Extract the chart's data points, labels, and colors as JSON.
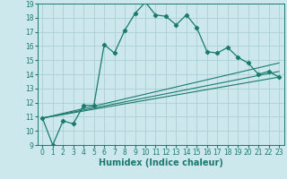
{
  "xlabel": "Humidex (Indice chaleur)",
  "bg_color": "#cce8ec",
  "grid_color": "#aacfd4",
  "line_color": "#1a7a6e",
  "xlim": [
    -0.5,
    23.5
  ],
  "ylim": [
    9,
    19
  ],
  "xticks": [
    0,
    1,
    2,
    3,
    4,
    5,
    6,
    7,
    8,
    9,
    10,
    11,
    12,
    13,
    14,
    15,
    16,
    17,
    18,
    19,
    20,
    21,
    22,
    23
  ],
  "yticks": [
    9,
    10,
    11,
    12,
    13,
    14,
    15,
    16,
    17,
    18,
    19
  ],
  "series1_x": [
    0,
    1,
    2,
    3,
    4,
    5,
    6,
    7,
    8,
    9,
    10,
    11,
    12,
    13,
    14,
    15,
    16,
    17,
    18,
    19,
    20,
    21,
    22,
    23
  ],
  "series1_y": [
    10.9,
    9.0,
    10.7,
    10.5,
    11.8,
    11.8,
    16.1,
    15.5,
    17.1,
    18.3,
    19.1,
    18.2,
    18.1,
    17.5,
    18.2,
    17.3,
    15.6,
    15.5,
    15.9,
    15.2,
    14.8,
    14.0,
    14.2,
    13.8
  ],
  "series2_x": [
    0,
    23
  ],
  "series2_y": [
    10.9,
    14.8
  ],
  "series3_x": [
    0,
    23
  ],
  "series3_y": [
    10.9,
    13.8
  ],
  "series4_x": [
    0,
    23
  ],
  "series4_y": [
    10.9,
    14.2
  ]
}
